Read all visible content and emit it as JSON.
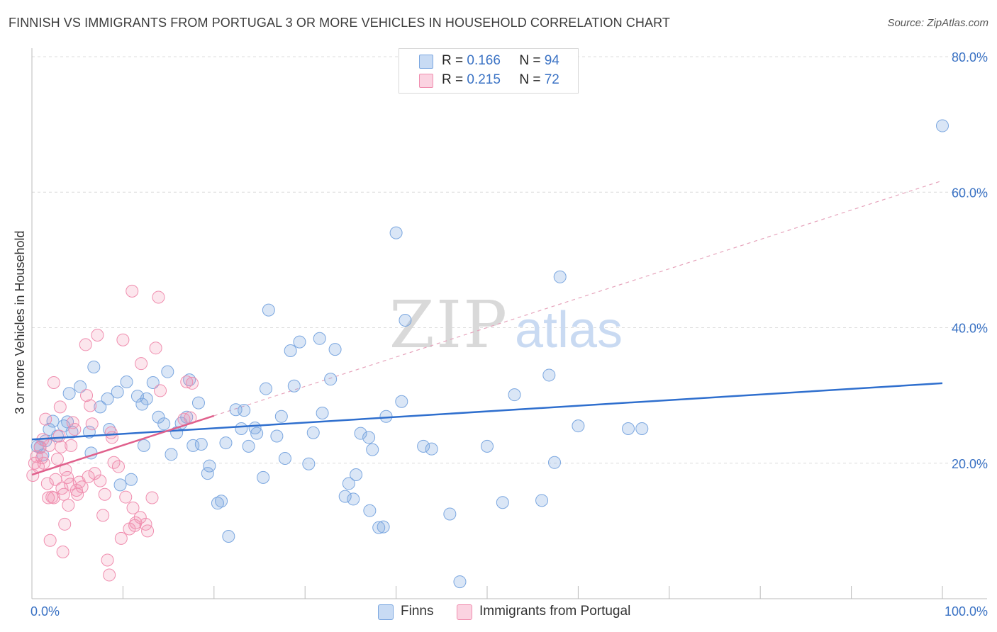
{
  "header": {
    "title": "FINNISH VS IMMIGRANTS FROM PORTUGAL 3 OR MORE VEHICLES IN HOUSEHOLD CORRELATION CHART",
    "source": "Source: ZipAtlas.com"
  },
  "legend": {
    "rows": [
      {
        "r_label": "R =",
        "r_value": "0.166",
        "n_label": "N =",
        "n_value": "94"
      },
      {
        "r_label": "R =",
        "r_value": "0.215",
        "n_label": "N =",
        "n_value": "72"
      }
    ]
  },
  "bottom_legend": {
    "finns": "Finns",
    "portugal": "Immigrants from Portugal"
  },
  "watermark": {
    "zip": "ZIP",
    "atlas": "atlas"
  },
  "colors": {
    "finns": "#7ba7e0",
    "finns_line": "#2f6fce",
    "portugal": "#f08eaf",
    "portugal_line": "#e0608c",
    "axis_label": "#3a72c4"
  },
  "chart_data": {
    "type": "scatter",
    "title": "FINNISH VS IMMIGRANTS FROM PORTUGAL 3 OR MORE VEHICLES IN HOUSEHOLD CORRELATION CHART",
    "xlabel": "",
    "ylabel": "3 or more Vehicles in Household",
    "xlim": [
      0,
      100
    ],
    "ylim": [
      0,
      80
    ],
    "x_tick_labels": [
      "0.0%",
      "100.0%"
    ],
    "y_ticks": [
      20,
      40,
      60,
      80
    ],
    "y_tick_labels": [
      "20.0%",
      "40.0%",
      "60.0%",
      "80.0%"
    ],
    "grid": true,
    "series": [
      {
        "name": "Finns",
        "R": 0.166,
        "N": 94,
        "trend": {
          "x": [
            0,
            100
          ],
          "y": [
            23.5,
            31.8
          ],
          "style": "solid"
        },
        "points": [
          [
            0.6,
            22.5
          ],
          [
            0.9,
            22.4
          ],
          [
            1.2,
            21.2
          ],
          [
            1.5,
            23.3
          ],
          [
            1.9,
            25.0
          ],
          [
            2.3,
            26.2
          ],
          [
            2.8,
            24.0
          ],
          [
            3.5,
            25.5
          ],
          [
            3.9,
            26.1
          ],
          [
            4.4,
            24.6
          ],
          [
            4.1,
            30.3
          ],
          [
            5.3,
            31.3
          ],
          [
            6.3,
            24.6
          ],
          [
            6.5,
            21.5
          ],
          [
            6.8,
            34.2
          ],
          [
            7.5,
            28.3
          ],
          [
            8.5,
            25.0
          ],
          [
            8.3,
            29.5
          ],
          [
            9.4,
            30.5
          ],
          [
            9.7,
            16.8
          ],
          [
            10.4,
            32.0
          ],
          [
            10.9,
            17.6
          ],
          [
            11.6,
            29.9
          ],
          [
            12.1,
            28.7
          ],
          [
            12.6,
            29.5
          ],
          [
            12.3,
            22.6
          ],
          [
            13.3,
            31.9
          ],
          [
            13.9,
            26.8
          ],
          [
            14.5,
            25.8
          ],
          [
            14.9,
            33.5
          ],
          [
            15.3,
            21.3
          ],
          [
            15.9,
            24.5
          ],
          [
            16.4,
            25.9
          ],
          [
            17.0,
            26.8
          ],
          [
            17.3,
            32.3
          ],
          [
            17.7,
            22.6
          ],
          [
            18.3,
            28.9
          ],
          [
            18.6,
            22.8
          ],
          [
            19.3,
            18.5
          ],
          [
            19.5,
            19.6
          ],
          [
            20.4,
            14.1
          ],
          [
            20.8,
            14.4
          ],
          [
            21.3,
            23.0
          ],
          [
            21.6,
            9.2
          ],
          [
            22.4,
            27.9
          ],
          [
            23.0,
            25.1
          ],
          [
            23.3,
            27.8
          ],
          [
            23.8,
            22.5
          ],
          [
            24.5,
            25.2
          ],
          [
            24.7,
            24.4
          ],
          [
            25.4,
            17.9
          ],
          [
            26.0,
            42.6
          ],
          [
            25.7,
            31.0
          ],
          [
            26.9,
            24.0
          ],
          [
            27.4,
            26.9
          ],
          [
            27.8,
            20.7
          ],
          [
            28.4,
            36.6
          ],
          [
            28.8,
            31.4
          ],
          [
            29.4,
            37.9
          ],
          [
            30.4,
            19.9
          ],
          [
            30.9,
            24.5
          ],
          [
            31.6,
            38.4
          ],
          [
            31.9,
            27.4
          ],
          [
            32.8,
            32.4
          ],
          [
            33.3,
            36.8
          ],
          [
            34.4,
            15.1
          ],
          [
            34.8,
            17.0
          ],
          [
            35.3,
            14.7
          ],
          [
            35.6,
            18.3
          ],
          [
            36.1,
            24.4
          ],
          [
            37.0,
            23.8
          ],
          [
            37.4,
            22.0
          ],
          [
            37.1,
            13.0
          ],
          [
            38.1,
            10.5
          ],
          [
            38.6,
            10.6
          ],
          [
            38.9,
            26.9
          ],
          [
            40.0,
            54.0
          ],
          [
            40.6,
            29.1
          ],
          [
            41.0,
            41.1
          ],
          [
            43.0,
            22.5
          ],
          [
            43.9,
            22.1
          ],
          [
            45.9,
            12.5
          ],
          [
            47.0,
            2.5
          ],
          [
            50.0,
            22.5
          ],
          [
            51.7,
            14.2
          ],
          [
            53.0,
            30.1
          ],
          [
            56.0,
            14.5
          ],
          [
            56.8,
            33.0
          ],
          [
            57.4,
            20.1
          ],
          [
            58.0,
            47.5
          ],
          [
            60.0,
            25.5
          ],
          [
            65.5,
            25.1
          ],
          [
            67.0,
            25.1
          ],
          [
            100,
            69.8
          ]
        ]
      },
      {
        "name": "Immigrants from Portugal",
        "R": 0.215,
        "N": 72,
        "trend": {
          "x": [
            0,
            20
          ],
          "y": [
            18.3,
            27.0
          ],
          "style": "solid"
        },
        "trend_extension": {
          "x": [
            20,
            100
          ],
          "y": [
            27.0,
            61.7
          ],
          "style": "dashed"
        },
        "points": [
          [
            0.1,
            18.2
          ],
          [
            0.3,
            20.0
          ],
          [
            0.5,
            21.0
          ],
          [
            0.7,
            19.5
          ],
          [
            0.9,
            22.3
          ],
          [
            1.1,
            20.8
          ],
          [
            1.2,
            23.5
          ],
          [
            1.3,
            20.0
          ],
          [
            1.5,
            26.5
          ],
          [
            1.7,
            17.0
          ],
          [
            1.8,
            14.9
          ],
          [
            1.9,
            22.6
          ],
          [
            2.0,
            8.6
          ],
          [
            2.2,
            15.0
          ],
          [
            2.4,
            14.9
          ],
          [
            2.4,
            31.9
          ],
          [
            2.6,
            17.6
          ],
          [
            2.8,
            20.6
          ],
          [
            3.0,
            24.0
          ],
          [
            3.1,
            28.3
          ],
          [
            3.2,
            22.4
          ],
          [
            3.3,
            16.3
          ],
          [
            3.4,
            6.9
          ],
          [
            3.5,
            15.4
          ],
          [
            3.6,
            11.0
          ],
          [
            3.7,
            19.0
          ],
          [
            3.9,
            17.9
          ],
          [
            4.0,
            13.8
          ],
          [
            4.2,
            16.9
          ],
          [
            4.3,
            22.6
          ],
          [
            4.5,
            26.0
          ],
          [
            4.7,
            25.0
          ],
          [
            4.9,
            16.0
          ],
          [
            5.0,
            15.4
          ],
          [
            5.2,
            17.2
          ],
          [
            5.5,
            16.5
          ],
          [
            5.9,
            37.5
          ],
          [
            6.0,
            30.0
          ],
          [
            6.2,
            18.0
          ],
          [
            6.4,
            28.5
          ],
          [
            6.6,
            25.8
          ],
          [
            6.9,
            18.5
          ],
          [
            7.2,
            38.9
          ],
          [
            7.5,
            17.4
          ],
          [
            7.8,
            12.3
          ],
          [
            8.0,
            15.4
          ],
          [
            8.3,
            5.7
          ],
          [
            8.5,
            3.5
          ],
          [
            8.7,
            24.5
          ],
          [
            8.8,
            23.8
          ],
          [
            9.0,
            20.1
          ],
          [
            9.5,
            19.5
          ],
          [
            9.8,
            8.9
          ],
          [
            10.0,
            38.2
          ],
          [
            10.3,
            15.0
          ],
          [
            10.7,
            10.3
          ],
          [
            11.0,
            45.4
          ],
          [
            11.1,
            13.4
          ],
          [
            11.3,
            10.8
          ],
          [
            11.4,
            11.2
          ],
          [
            11.9,
            12.0
          ],
          [
            12.0,
            34.7
          ],
          [
            12.5,
            11.0
          ],
          [
            12.7,
            10.0
          ],
          [
            13.2,
            14.9
          ],
          [
            13.6,
            37.0
          ],
          [
            13.9,
            44.5
          ],
          [
            14.1,
            30.7
          ],
          [
            16.7,
            26.5
          ],
          [
            17.0,
            32.0
          ],
          [
            17.4,
            26.7
          ],
          [
            17.6,
            31.8
          ]
        ]
      }
    ]
  }
}
